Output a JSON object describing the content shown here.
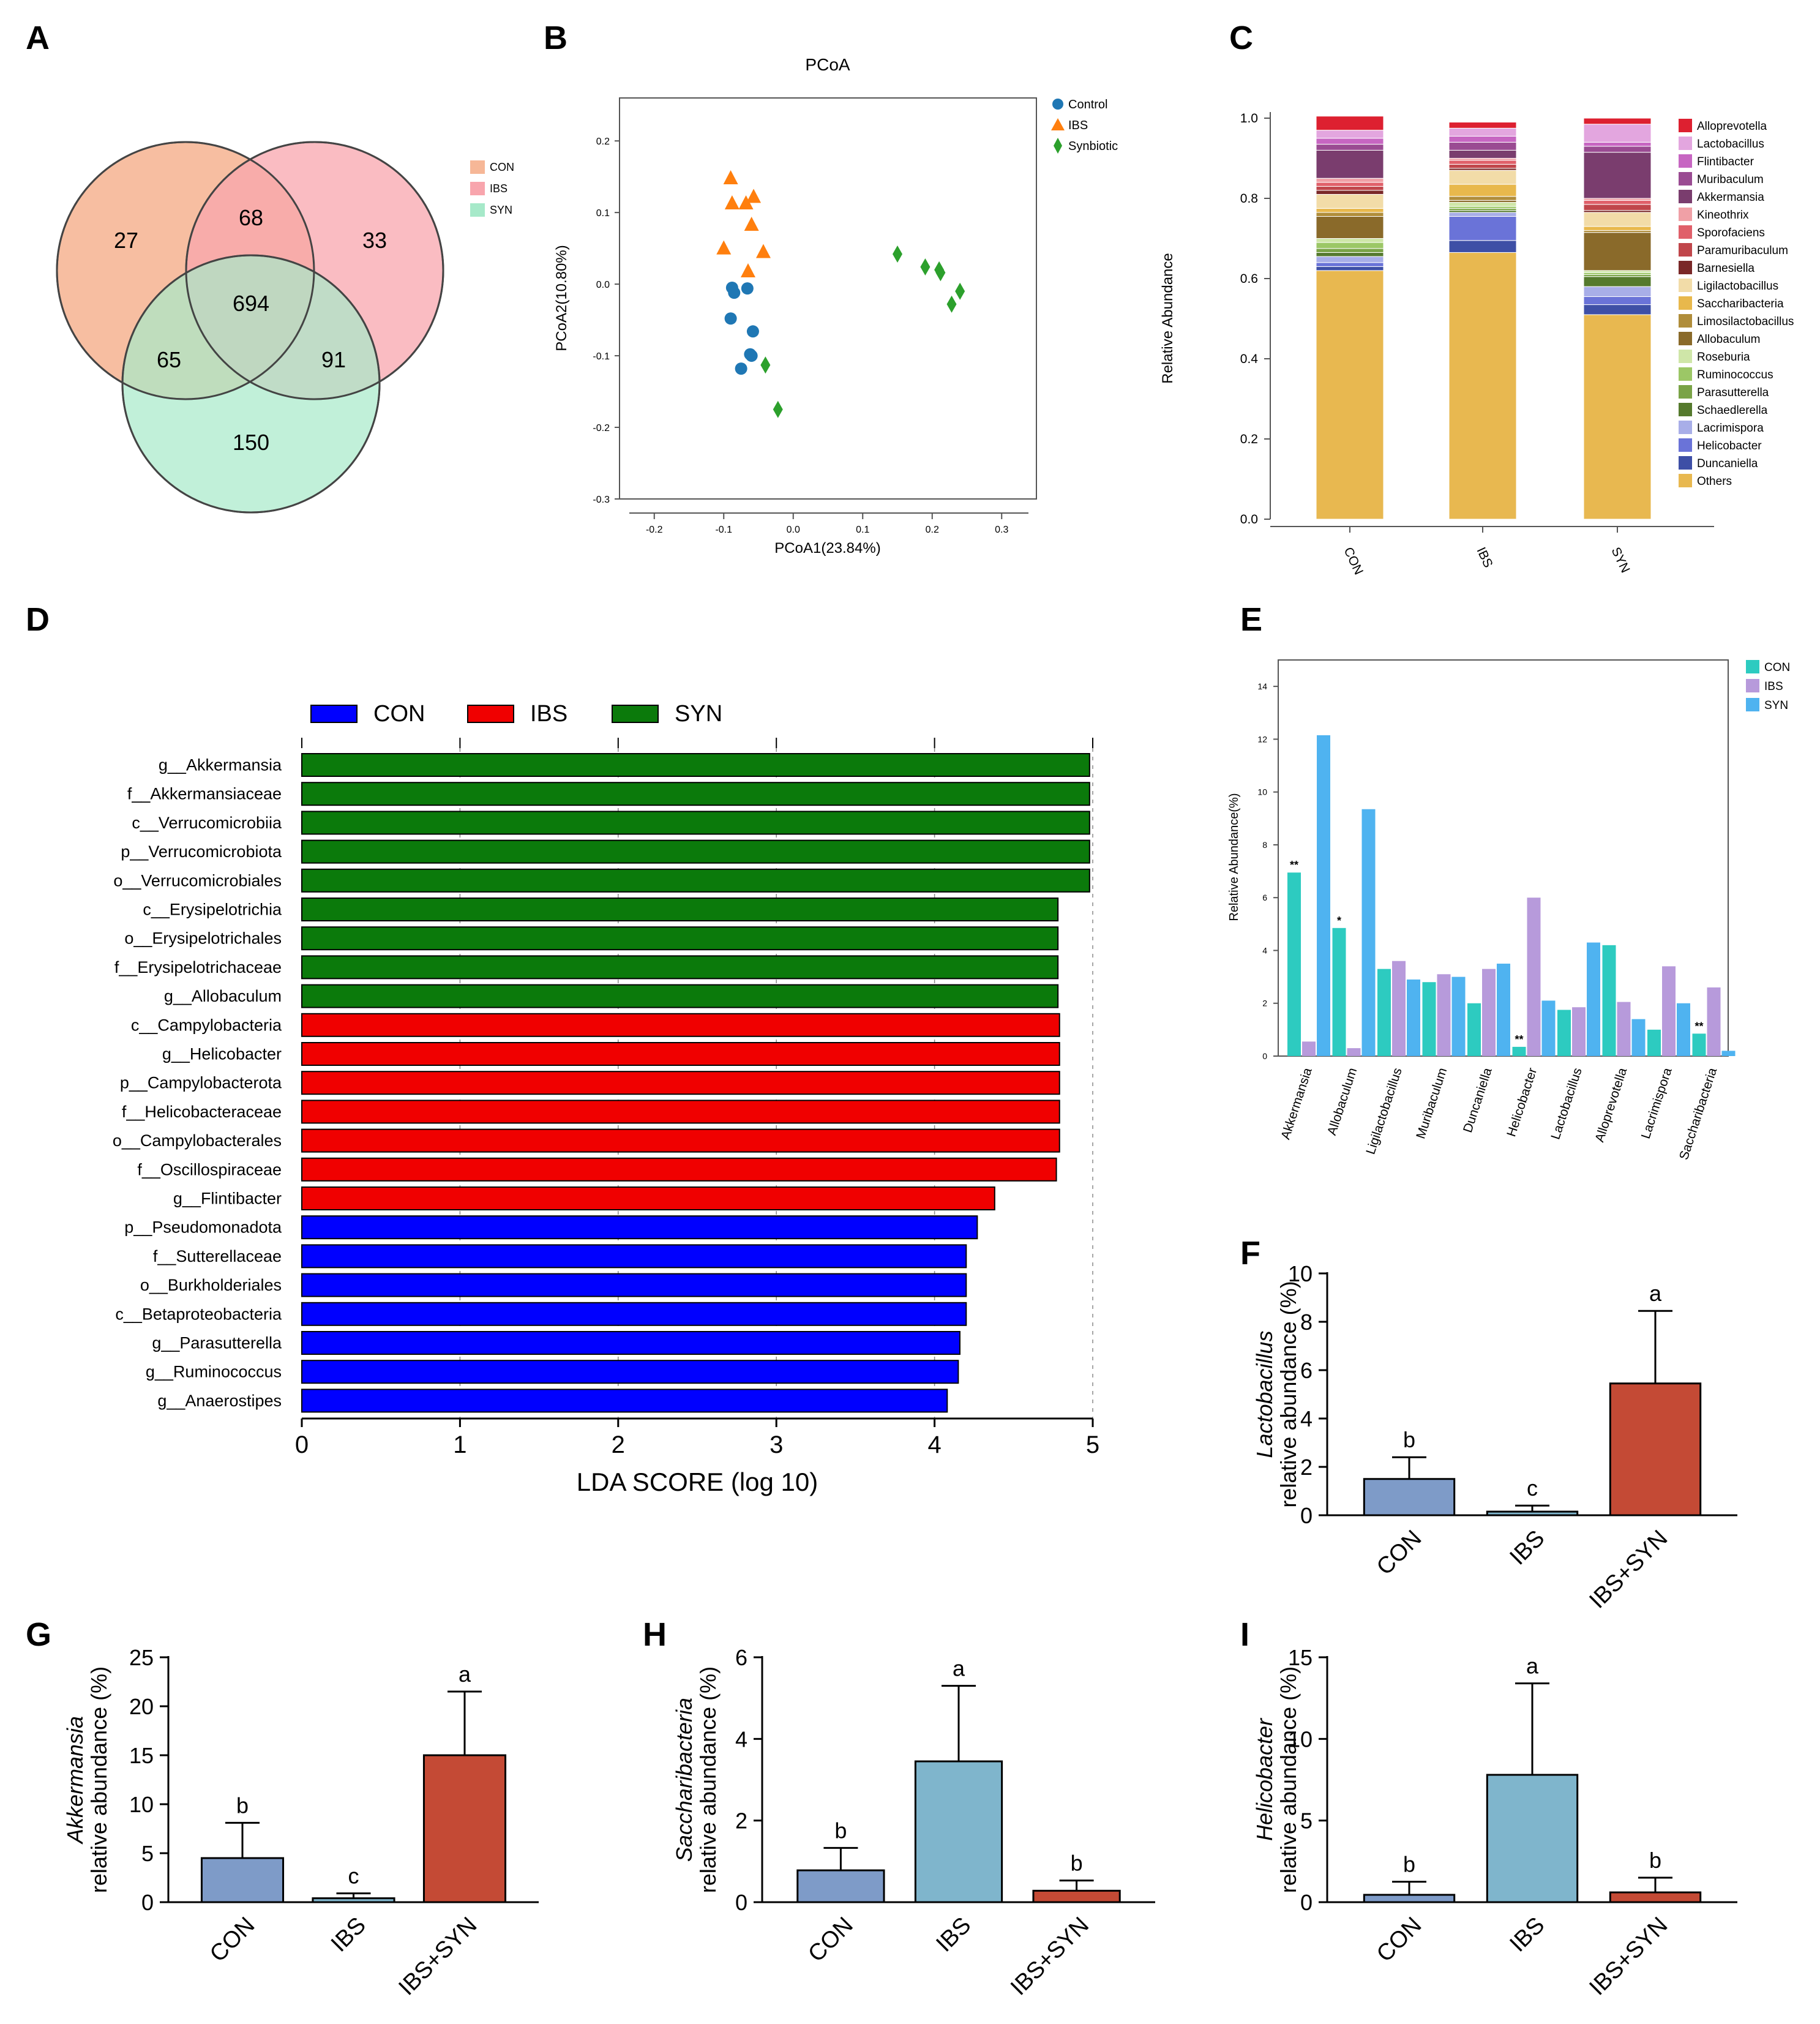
{
  "colors": {
    "con": "#f6b797",
    "ibs": "#f8a5ad",
    "syn": "#a6e9c9",
    "green": "#0b7a0b",
    "red": "#f00000",
    "blue": "#0000ff",
    "e_con": "#2dcbc0",
    "e_ibs": "#b79adb",
    "e_syn": "#4fb3f0",
    "bar_con": "#7e9bc8",
    "bar_ibs": "#7fb5cc",
    "bar_syn": "#c44a35",
    "pcoa_control": "#1f77b4",
    "pcoa_ibs": "#ff7f0e",
    "pcoa_syn": "#2ca02c"
  },
  "panels": {
    "A": "A",
    "B": "B",
    "C": "C",
    "D": "D",
    "E": "E",
    "F": "F",
    "G": "G",
    "H": "H",
    "I": "I"
  },
  "chart_data": [
    {
      "id": "A",
      "type": "venn",
      "legend": [
        "CON",
        "IBS",
        "SYN"
      ],
      "regions": {
        "con_only": "27",
        "ibs_only": "33",
        "syn_only": "150",
        "con_ibs": "68",
        "con_syn": "65",
        "ibs_syn": "91",
        "all": "694"
      }
    },
    {
      "id": "B",
      "type": "scatter",
      "title": "PCoA",
      "xlabel": "PCoA1(23.84%)",
      "ylabel": "PCoA2(10.80%)",
      "xlim": [
        -0.25,
        0.35
      ],
      "ylim": [
        -0.3,
        0.26
      ],
      "xticks": [
        "-0.2",
        "-0.1",
        "0.0",
        "0.1",
        "0.2",
        "0.3"
      ],
      "yticks": [
        "0.2",
        "0.1",
        "0.0",
        "-0.1",
        "-0.2",
        "-0.3"
      ],
      "series": [
        {
          "name": "Control",
          "marker": "circle",
          "points": [
            [
              -0.088,
              -0.005
            ],
            [
              -0.085,
              -0.012
            ],
            [
              -0.066,
              -0.006
            ],
            [
              -0.09,
              -0.048
            ],
            [
              -0.058,
              -0.066
            ],
            [
              -0.062,
              -0.098
            ],
            [
              -0.06,
              -0.1
            ],
            [
              -0.075,
              -0.118
            ]
          ]
        },
        {
          "name": "IBS",
          "marker": "triangle",
          "points": [
            [
              -0.09,
              0.148
            ],
            [
              -0.088,
              0.113
            ],
            [
              -0.068,
              0.113
            ],
            [
              -0.057,
              0.122
            ],
            [
              -0.06,
              0.083
            ],
            [
              -0.1,
              0.05
            ],
            [
              -0.043,
              0.045
            ],
            [
              -0.065,
              0.018
            ]
          ]
        },
        {
          "name": "Synbiotic",
          "marker": "diamond",
          "points": [
            [
              0.15,
              0.042
            ],
            [
              0.19,
              0.024
            ],
            [
              0.21,
              0.02
            ],
            [
              0.212,
              0.016
            ],
            [
              0.24,
              -0.01
            ],
            [
              0.228,
              -0.028
            ],
            [
              -0.04,
              -0.113
            ],
            [
              -0.022,
              -0.175
            ]
          ]
        }
      ]
    },
    {
      "id": "C",
      "type": "stacked_bar",
      "ylabel": "Relative Abundance",
      "ylim": [
        0,
        1.0
      ],
      "yticks": [
        "1.0",
        "0.8",
        "0.6",
        "0.4",
        "0.2",
        "0.0"
      ],
      "categories": [
        "CON",
        "IBS",
        "SYN"
      ],
      "series": [
        {
          "name": "Others",
          "color": "#e8b850",
          "values": [
            0.62,
            0.665,
            0.51
          ]
        },
        {
          "name": "Duncaniella",
          "color": "#3e4fa6",
          "values": [
            0.01,
            0.03,
            0.025
          ]
        },
        {
          "name": "Helicobacter",
          "color": "#6a73d8",
          "values": [
            0.01,
            0.06,
            0.02
          ]
        },
        {
          "name": "Lacrimispora",
          "color": "#a8aee8",
          "values": [
            0.015,
            0.01,
            0.025
          ]
        },
        {
          "name": "Schaedlerella",
          "color": "#557a2d",
          "values": [
            0.01,
            0.005,
            0.025
          ]
        },
        {
          "name": "Parasutterella",
          "color": "#7aa347",
          "values": [
            0.01,
            0.005,
            0.005
          ]
        },
        {
          "name": "Ruminococcus",
          "color": "#9cc766",
          "values": [
            0.015,
            0.005,
            0.005
          ]
        },
        {
          "name": "Roseburia",
          "color": "#cfe6a8",
          "values": [
            0.01,
            0.01,
            0.005
          ]
        },
        {
          "name": "Allobaculum",
          "color": "#8a6a2a",
          "values": [
            0.055,
            0.005,
            0.095
          ]
        },
        {
          "name": "Limosilactobacillus",
          "color": "#b08d3a",
          "values": [
            0.01,
            0.01,
            0.005
          ]
        },
        {
          "name": "Saccharibacteria",
          "color": "#e8b84c",
          "values": [
            0.01,
            0.03,
            0.01
          ]
        },
        {
          "name": "Ligilactobacillus",
          "color": "#f2dca8",
          "values": [
            0.035,
            0.035,
            0.035
          ]
        },
        {
          "name": "Barnesiella",
          "color": "#7a2828",
          "values": [
            0.01,
            0.005,
            0.005
          ]
        },
        {
          "name": "Paramuribaculum",
          "color": "#c0464b",
          "values": [
            0.01,
            0.01,
            0.015
          ]
        },
        {
          "name": "Sporofaciens",
          "color": "#e0606a",
          "values": [
            0.01,
            0.01,
            0.01
          ]
        },
        {
          "name": "Kineothrix",
          "color": "#f0a0a6",
          "values": [
            0.01,
            0.005,
            0.005
          ]
        },
        {
          "name": "Akkermansia",
          "color": "#7a3d6e",
          "values": [
            0.07,
            0.02,
            0.115
          ]
        },
        {
          "name": "Muribaculum",
          "color": "#9a4b92",
          "values": [
            0.015,
            0.02,
            0.015
          ]
        },
        {
          "name": "Flintibacter",
          "color": "#c766c2",
          "values": [
            0.015,
            0.015,
            0.01
          ]
        },
        {
          "name": "Lactobacillus",
          "color": "#e3a6df",
          "values": [
            0.02,
            0.02,
            0.045
          ]
        },
        {
          "name": "Alloprevotella",
          "color": "#dd2030",
          "values": [
            0.035,
            0.015,
            0.015
          ]
        }
      ]
    },
    {
      "id": "D",
      "type": "bar",
      "orientation": "horizontal",
      "xlabel": "LDA SCORE (log 10)",
      "xlim": [
        0,
        5
      ],
      "xticks": [
        "0",
        "1",
        "2",
        "3",
        "4",
        "5"
      ],
      "legend": [
        "CON",
        "IBS",
        "SYN"
      ],
      "categories": [
        "g__Akkermansia",
        "f__Akkermansiaceae",
        "c__Verrucomicrobiia",
        "p__Verrucomicrobiota",
        "o__Verrucomicrobiales",
        "c__Erysipelotrichia",
        "o__Erysipelotrichales",
        "f__Erysipelotrichaceae",
        "g__Allobaculum",
        "c__Campylobacteria",
        "g__Helicobacter",
        "p__Campylobacterota",
        "f__Helicobacteraceae",
        "o__Campylobacterales",
        "f__Oscillospiraceae",
        "g__Flintibacter",
        "p__Pseudomonadota",
        "f__Sutterellaceae",
        "o__Burkholderiales",
        "c__Betaproteobacteria",
        "g__Parasutterella",
        "g__Ruminococcus",
        "g__Anaerostipes"
      ],
      "values": [
        4.98,
        4.98,
        4.98,
        4.98,
        4.98,
        4.78,
        4.78,
        4.78,
        4.78,
        4.79,
        4.79,
        4.79,
        4.79,
        4.79,
        4.77,
        4.38,
        4.27,
        4.2,
        4.2,
        4.2,
        4.16,
        4.15,
        4.08
      ],
      "groups": [
        "SYN",
        "SYN",
        "SYN",
        "SYN",
        "SYN",
        "SYN",
        "SYN",
        "SYN",
        "SYN",
        "IBS",
        "IBS",
        "IBS",
        "IBS",
        "IBS",
        "IBS",
        "IBS",
        "CON",
        "CON",
        "CON",
        "CON",
        "CON",
        "CON",
        "CON"
      ]
    },
    {
      "id": "E",
      "type": "bar",
      "orientation": "vertical",
      "ylabel": "Relative Abundance(%)",
      "ylim": [
        0,
        15
      ],
      "yticks": [
        "0",
        "2",
        "4",
        "6",
        "8",
        "10",
        "12",
        "14"
      ],
      "categories": [
        "Akkermansia",
        "Allobaculum",
        "Ligilactobacillus",
        "Muribaculum",
        "Duncaniella",
        "Helicobacter",
        "Lactobacillus",
        "Alloprevotella",
        "Lacrimispora",
        "Saccharibacteria"
      ],
      "series": [
        {
          "name": "CON",
          "values": [
            6.95,
            4.85,
            3.3,
            2.8,
            2.0,
            0.35,
            1.75,
            4.2,
            1.0,
            0.85
          ]
        },
        {
          "name": "IBS",
          "values": [
            0.55,
            0.3,
            3.6,
            3.1,
            3.3,
            6.0,
            1.85,
            2.05,
            3.4,
            2.6
          ]
        },
        {
          "name": "SYN",
          "values": [
            12.15,
            9.35,
            2.9,
            3.0,
            3.5,
            2.1,
            4.3,
            1.4,
            2.0,
            0.2
          ]
        }
      ],
      "annotations": [
        "**",
        "*",
        "",
        "",
        "",
        "**",
        "",
        "",
        "",
        "**"
      ]
    },
    {
      "id": "F",
      "type": "bar",
      "ylabel_italic": "Lactobacillus",
      "ylabel": "relative abundance (%)",
      "ylim": [
        0,
        10
      ],
      "yticks": [
        "0",
        "2",
        "4",
        "6",
        "8",
        "10"
      ],
      "categories": [
        "CON",
        "IBS",
        "IBS+SYN"
      ],
      "values": [
        1.5,
        0.15,
        5.45
      ],
      "errors": [
        0.9,
        0.25,
        3.0
      ],
      "letters": [
        "b",
        "c",
        "a"
      ]
    },
    {
      "id": "G",
      "type": "bar",
      "ylabel_italic": "Akkermansia",
      "ylabel": "relative abundance (%)",
      "ylim": [
        0,
        25
      ],
      "yticks": [
        "0",
        "5",
        "10",
        "15",
        "20",
        "25"
      ],
      "categories": [
        "CON",
        "IBS",
        "IBS+SYN"
      ],
      "values": [
        4.5,
        0.4,
        15.0
      ],
      "errors": [
        3.6,
        0.5,
        6.5
      ],
      "letters": [
        "b",
        "c",
        "a"
      ]
    },
    {
      "id": "H",
      "type": "bar",
      "ylabel_italic": "Saccharibacteria",
      "ylabel": "relative abundance (%)",
      "ylim": [
        0,
        6
      ],
      "yticks": [
        "0",
        "2",
        "4",
        "6"
      ],
      "categories": [
        "CON",
        "IBS",
        "IBS+SYN"
      ],
      "values": [
        0.78,
        3.45,
        0.28
      ],
      "errors": [
        0.55,
        1.85,
        0.25
      ],
      "letters": [
        "b",
        "a",
        "b"
      ]
    },
    {
      "id": "I",
      "type": "bar",
      "ylabel_italic": "Helicobacter",
      "ylabel": "relative abundance (%)",
      "ylim": [
        0,
        15
      ],
      "yticks": [
        "0",
        "5",
        "10",
        "15"
      ],
      "categories": [
        "CON",
        "IBS",
        "IBS+SYN"
      ],
      "values": [
        0.45,
        7.8,
        0.6
      ],
      "errors": [
        0.8,
        5.6,
        0.9
      ],
      "letters": [
        "b",
        "a",
        "b"
      ]
    }
  ]
}
